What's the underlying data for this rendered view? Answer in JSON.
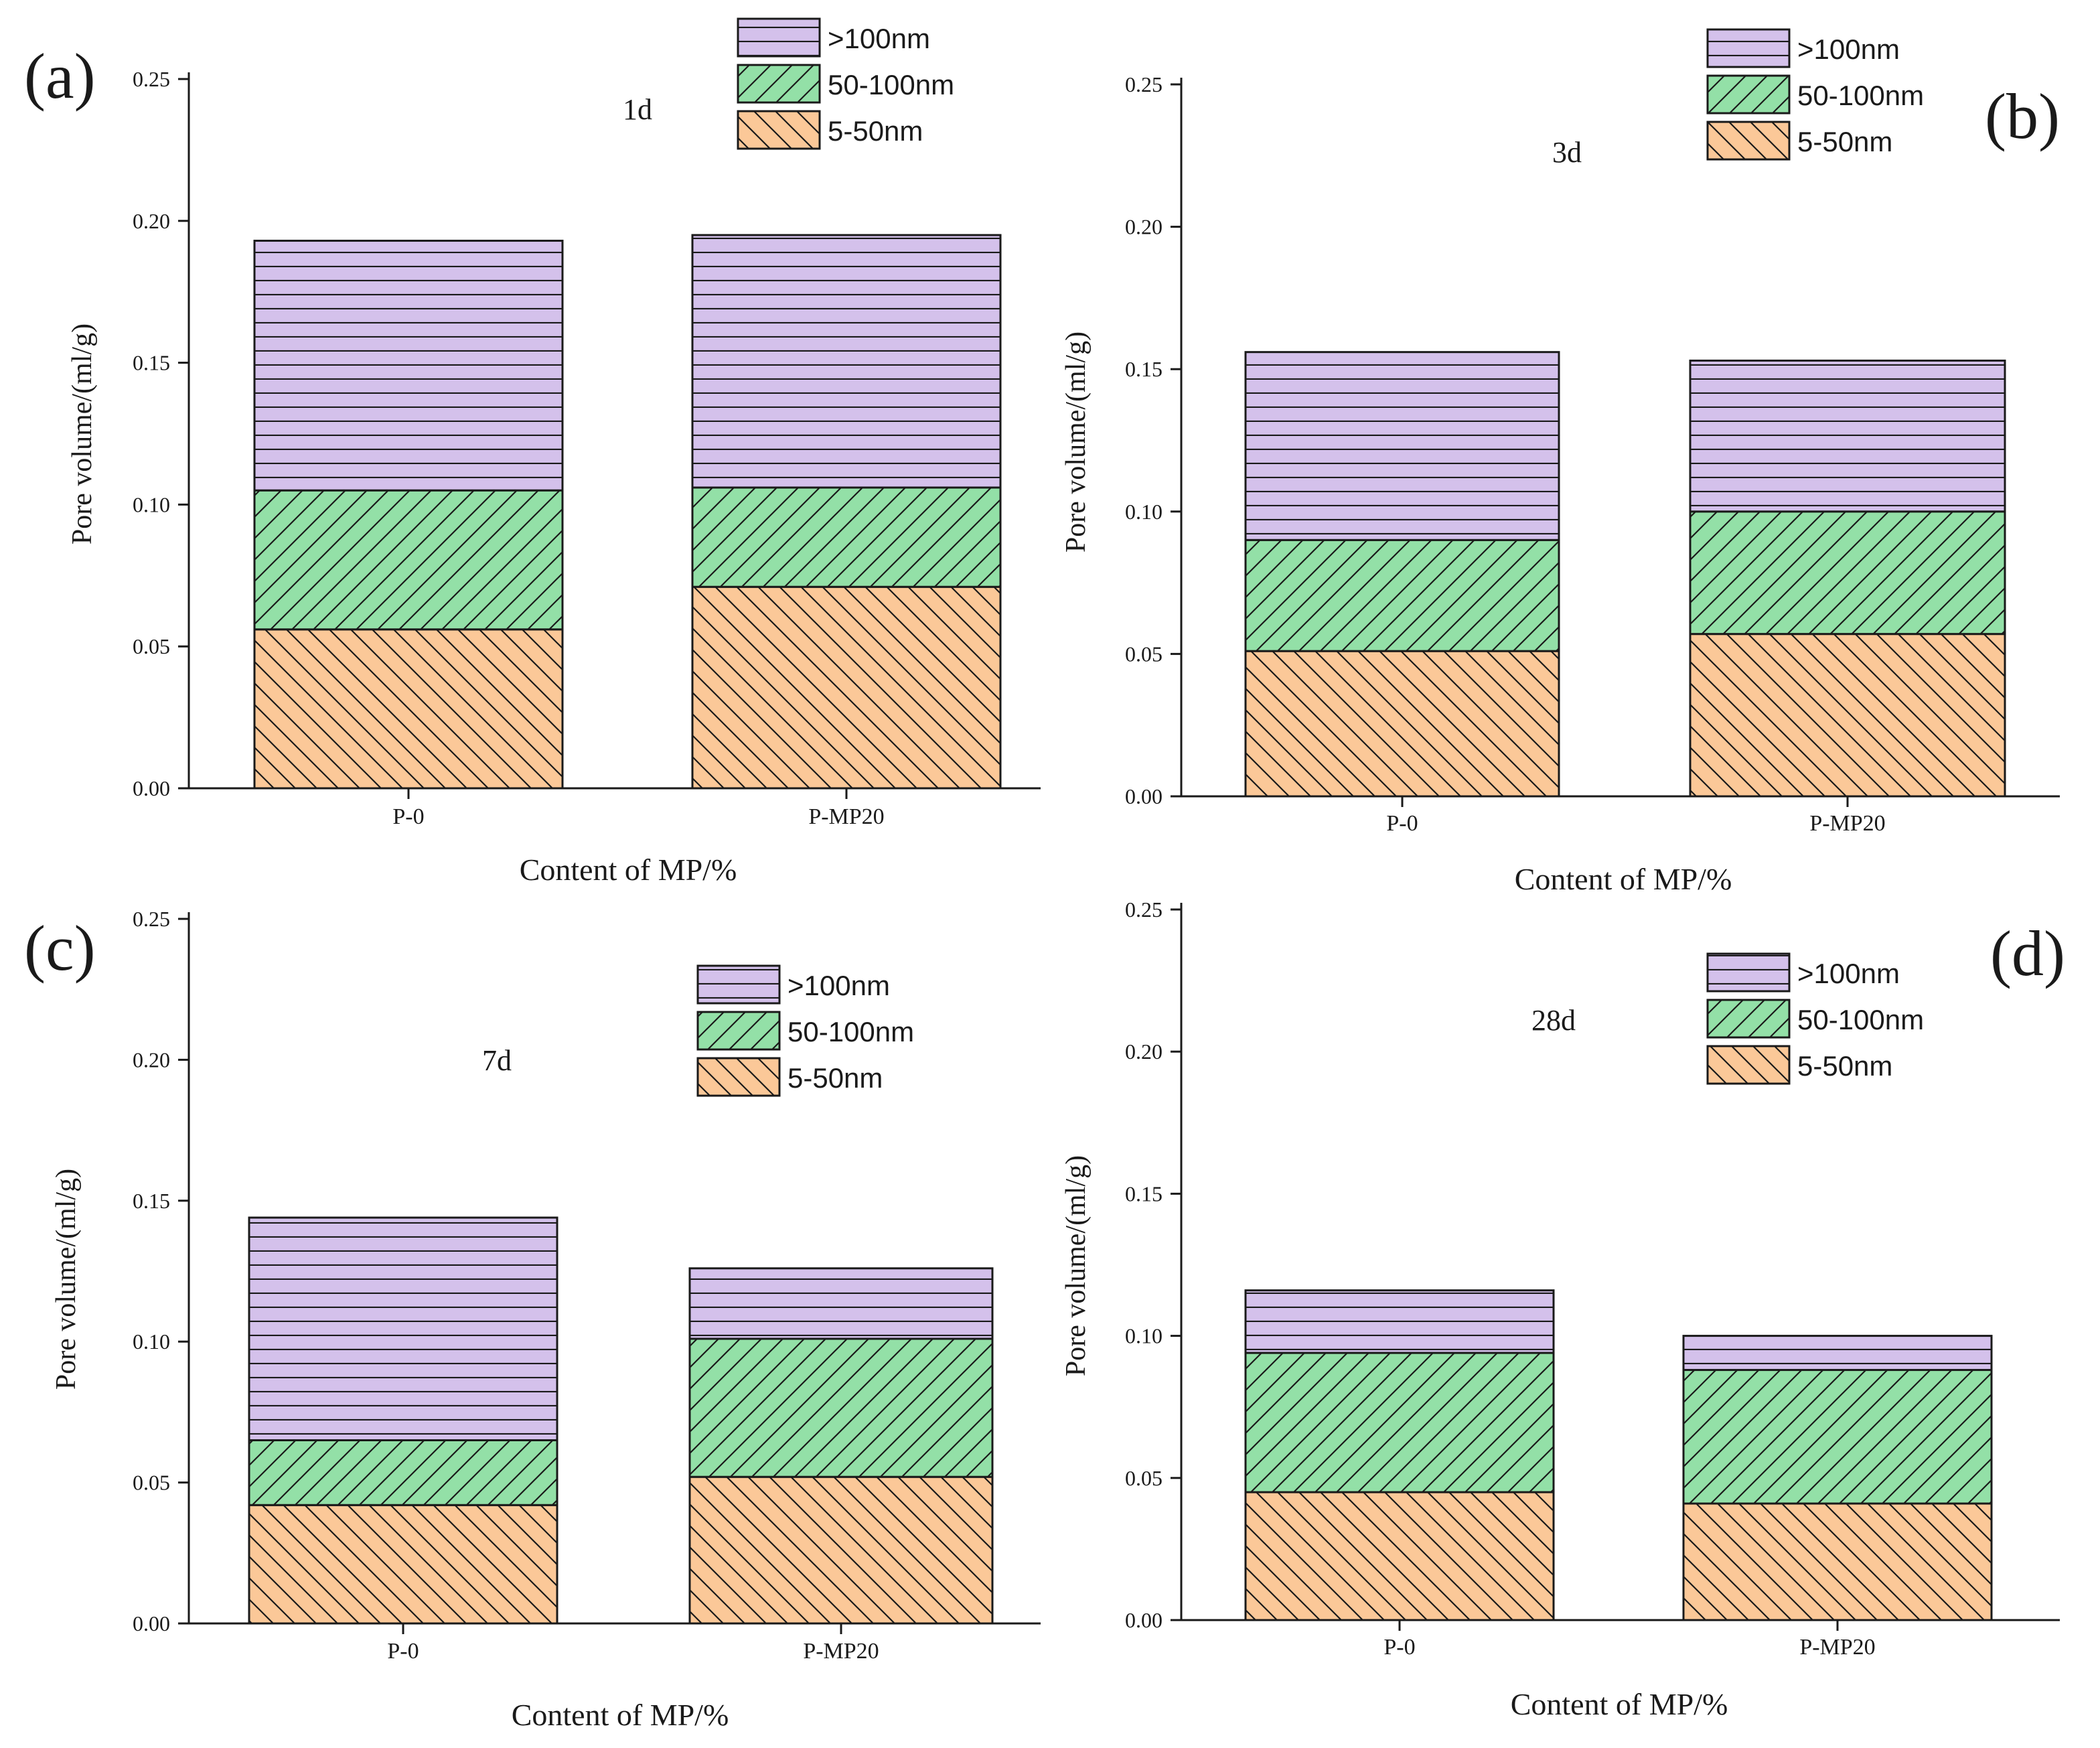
{
  "chart_data": [
    {
      "panel_label": "(a)",
      "type": "bar",
      "stacked": true,
      "annotation": "1d",
      "categories": [
        "P-0",
        "P-MP20"
      ],
      "series": [
        {
          "name": "5-50nm",
          "values": [
            0.056,
            0.071
          ]
        },
        {
          "name": "50-100nm",
          "values": [
            0.049,
            0.035
          ]
        },
        {
          "name": ">100nm",
          "values": [
            0.088,
            0.089
          ]
        }
      ],
      "xlabel": "Content of MP/%",
      "ylabel": "Pore volume/(ml/g)",
      "ylim": [
        0,
        0.25
      ],
      "yticks": [
        "0.00",
        "0.05",
        "0.10",
        "0.15",
        "0.20",
        "0.25"
      ],
      "legend": "top-right"
    },
    {
      "panel_label": "(b)",
      "type": "bar",
      "stacked": true,
      "annotation": "3d",
      "categories": [
        "P-0",
        "P-MP20"
      ],
      "series": [
        {
          "name": "5-50nm",
          "values": [
            0.051,
            0.057
          ]
        },
        {
          "name": "50-100nm",
          "values": [
            0.039,
            0.043
          ]
        },
        {
          "name": ">100nm",
          "values": [
            0.066,
            0.053
          ]
        }
      ],
      "xlabel": "Content of MP/%",
      "ylabel": "Pore volume/(ml/g)",
      "ylim": [
        0,
        0.25
      ],
      "yticks": [
        "0.00",
        "0.05",
        "0.10",
        "0.15",
        "0.20",
        "0.25"
      ],
      "legend": "top-right"
    },
    {
      "panel_label": "(c)",
      "type": "bar",
      "stacked": true,
      "annotation": "7d",
      "categories": [
        "P-0",
        "P-MP20"
      ],
      "series": [
        {
          "name": "5-50nm",
          "values": [
            0.042,
            0.052
          ]
        },
        {
          "name": "50-100nm",
          "values": [
            0.023,
            0.049
          ]
        },
        {
          "name": ">100nm",
          "values": [
            0.079,
            0.025
          ]
        }
      ],
      "xlabel": "Content of MP/%",
      "ylabel": "Pore volume/(ml/g)",
      "ylim": [
        0,
        0.25
      ],
      "yticks": [
        "0.00",
        "0.05",
        "0.10",
        "0.15",
        "0.20",
        "0.25"
      ],
      "legend": "top-right"
    },
    {
      "panel_label": "(d)",
      "type": "bar",
      "stacked": true,
      "annotation": "28d",
      "categories": [
        "P-0",
        "P-MP20"
      ],
      "series": [
        {
          "name": "5-50nm",
          "values": [
            0.045,
            0.041
          ]
        },
        {
          "name": "50-100nm",
          "values": [
            0.049,
            0.047
          ]
        },
        {
          "name": ">100nm",
          "values": [
            0.022,
            0.012
          ]
        }
      ],
      "xlabel": "Content of MP/%",
      "ylabel": "Pore volume/(ml/g)",
      "ylim": [
        0,
        0.25
      ],
      "yticks": [
        "0.00",
        "0.05",
        "0.10",
        "0.15",
        "0.20",
        "0.25"
      ],
      "legend": "top-right"
    }
  ],
  "colors": {
    "5-50nm": "#fbc898",
    "50-100nm": "#93e0a7",
    ">100nm": "#d4c1eb",
    "outline": "#1a1a1a"
  }
}
